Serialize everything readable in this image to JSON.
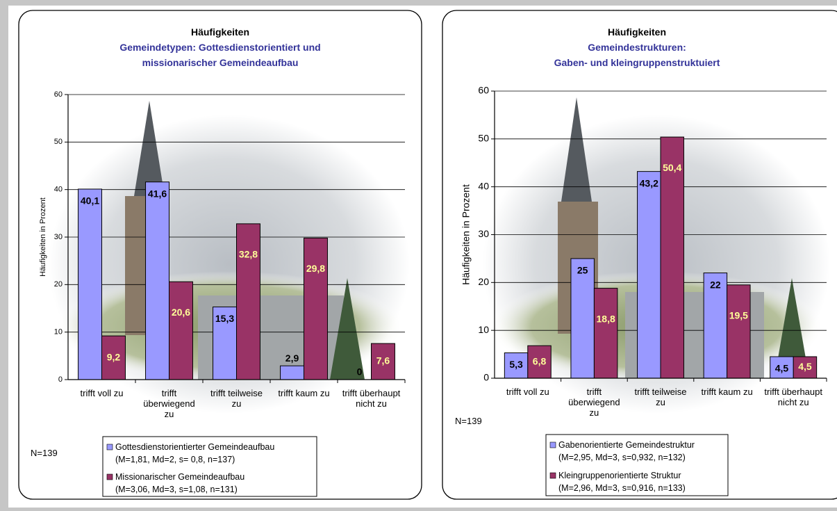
{
  "chart_data": [
    {
      "type": "bar",
      "title": "Häufigkeiten",
      "subtitle": "Gemeindetypen: Gottesdienstorientiert und\nmissionarischer Gemeindeaufbau",
      "ylabel": "Häufigkeiten in Prozent",
      "annotation": "N=139",
      "categories": [
        "trifft voll zu",
        "trifft überwiegend zu",
        "trifft teilweise zu",
        "trifft kaum zu",
        "trifft überhaupt nicht zu"
      ],
      "series": [
        {
          "name": "Gottesdienstorientierter Gemeindeaufbau\n(M=1,81, Md=2, s= 0,8, n=137)",
          "color": "#9999ff",
          "label_color": "#000000",
          "values": [
            40.1,
            41.6,
            15.3,
            2.9,
            0
          ],
          "value_labels": [
            "40,1",
            "41,6",
            "15,3",
            "2,9",
            "0"
          ]
        },
        {
          "name": "Missionarischer Gemeindeaufbau\n(M=3,06, Md=3, s=1,08, n=131)",
          "color": "#993366",
          "label_color": "#ffff99",
          "values": [
            9.2,
            20.6,
            32.8,
            29.8,
            7.6
          ],
          "value_labels": [
            "9,2",
            "20,6",
            "32,8",
            "29,8",
            "7,6"
          ]
        }
      ],
      "ylim": [
        0,
        60
      ],
      "yticks": [
        0,
        10,
        20,
        30,
        40,
        50,
        60
      ],
      "grid": true
    },
    {
      "type": "bar",
      "title": "Häufigkeiten",
      "subtitle": "Gemeindestrukturen:\nGaben- und kleingruppenstruktuiert",
      "ylabel": "Häufigkeiten in Prozent",
      "annotation": "N=139",
      "categories": [
        "trifft voll zu",
        "trifft überwiegend zu",
        "trifft teilweise zu",
        "trifft kaum zu",
        "trifft überhaupt nicht zu"
      ],
      "series": [
        {
          "name": "Gabenorientierte Gemeindestruktur\n(M=2,95, Md=3, s=0,932, n=132)",
          "color": "#9999ff",
          "label_color": "#000000",
          "values": [
            5.3,
            25,
            43.2,
            22,
            4.5
          ],
          "value_labels": [
            "5,3",
            "25",
            "43,2",
            "22",
            "4,5"
          ]
        },
        {
          "name": "Kleingruppenorientierte Struktur\n(M=2,96, Md=3, s=0,916, n=133)",
          "color": "#993366",
          "label_color": "#ffff99",
          "values": [
            6.8,
            18.8,
            50.4,
            19.5,
            4.5
          ],
          "value_labels": [
            "6,8",
            "18,8",
            "50,4",
            "19,5",
            "4,5"
          ]
        }
      ],
      "ylim": [
        0,
        60
      ],
      "yticks": [
        0,
        10,
        20,
        30,
        40,
        50,
        60
      ],
      "grid": true
    }
  ]
}
